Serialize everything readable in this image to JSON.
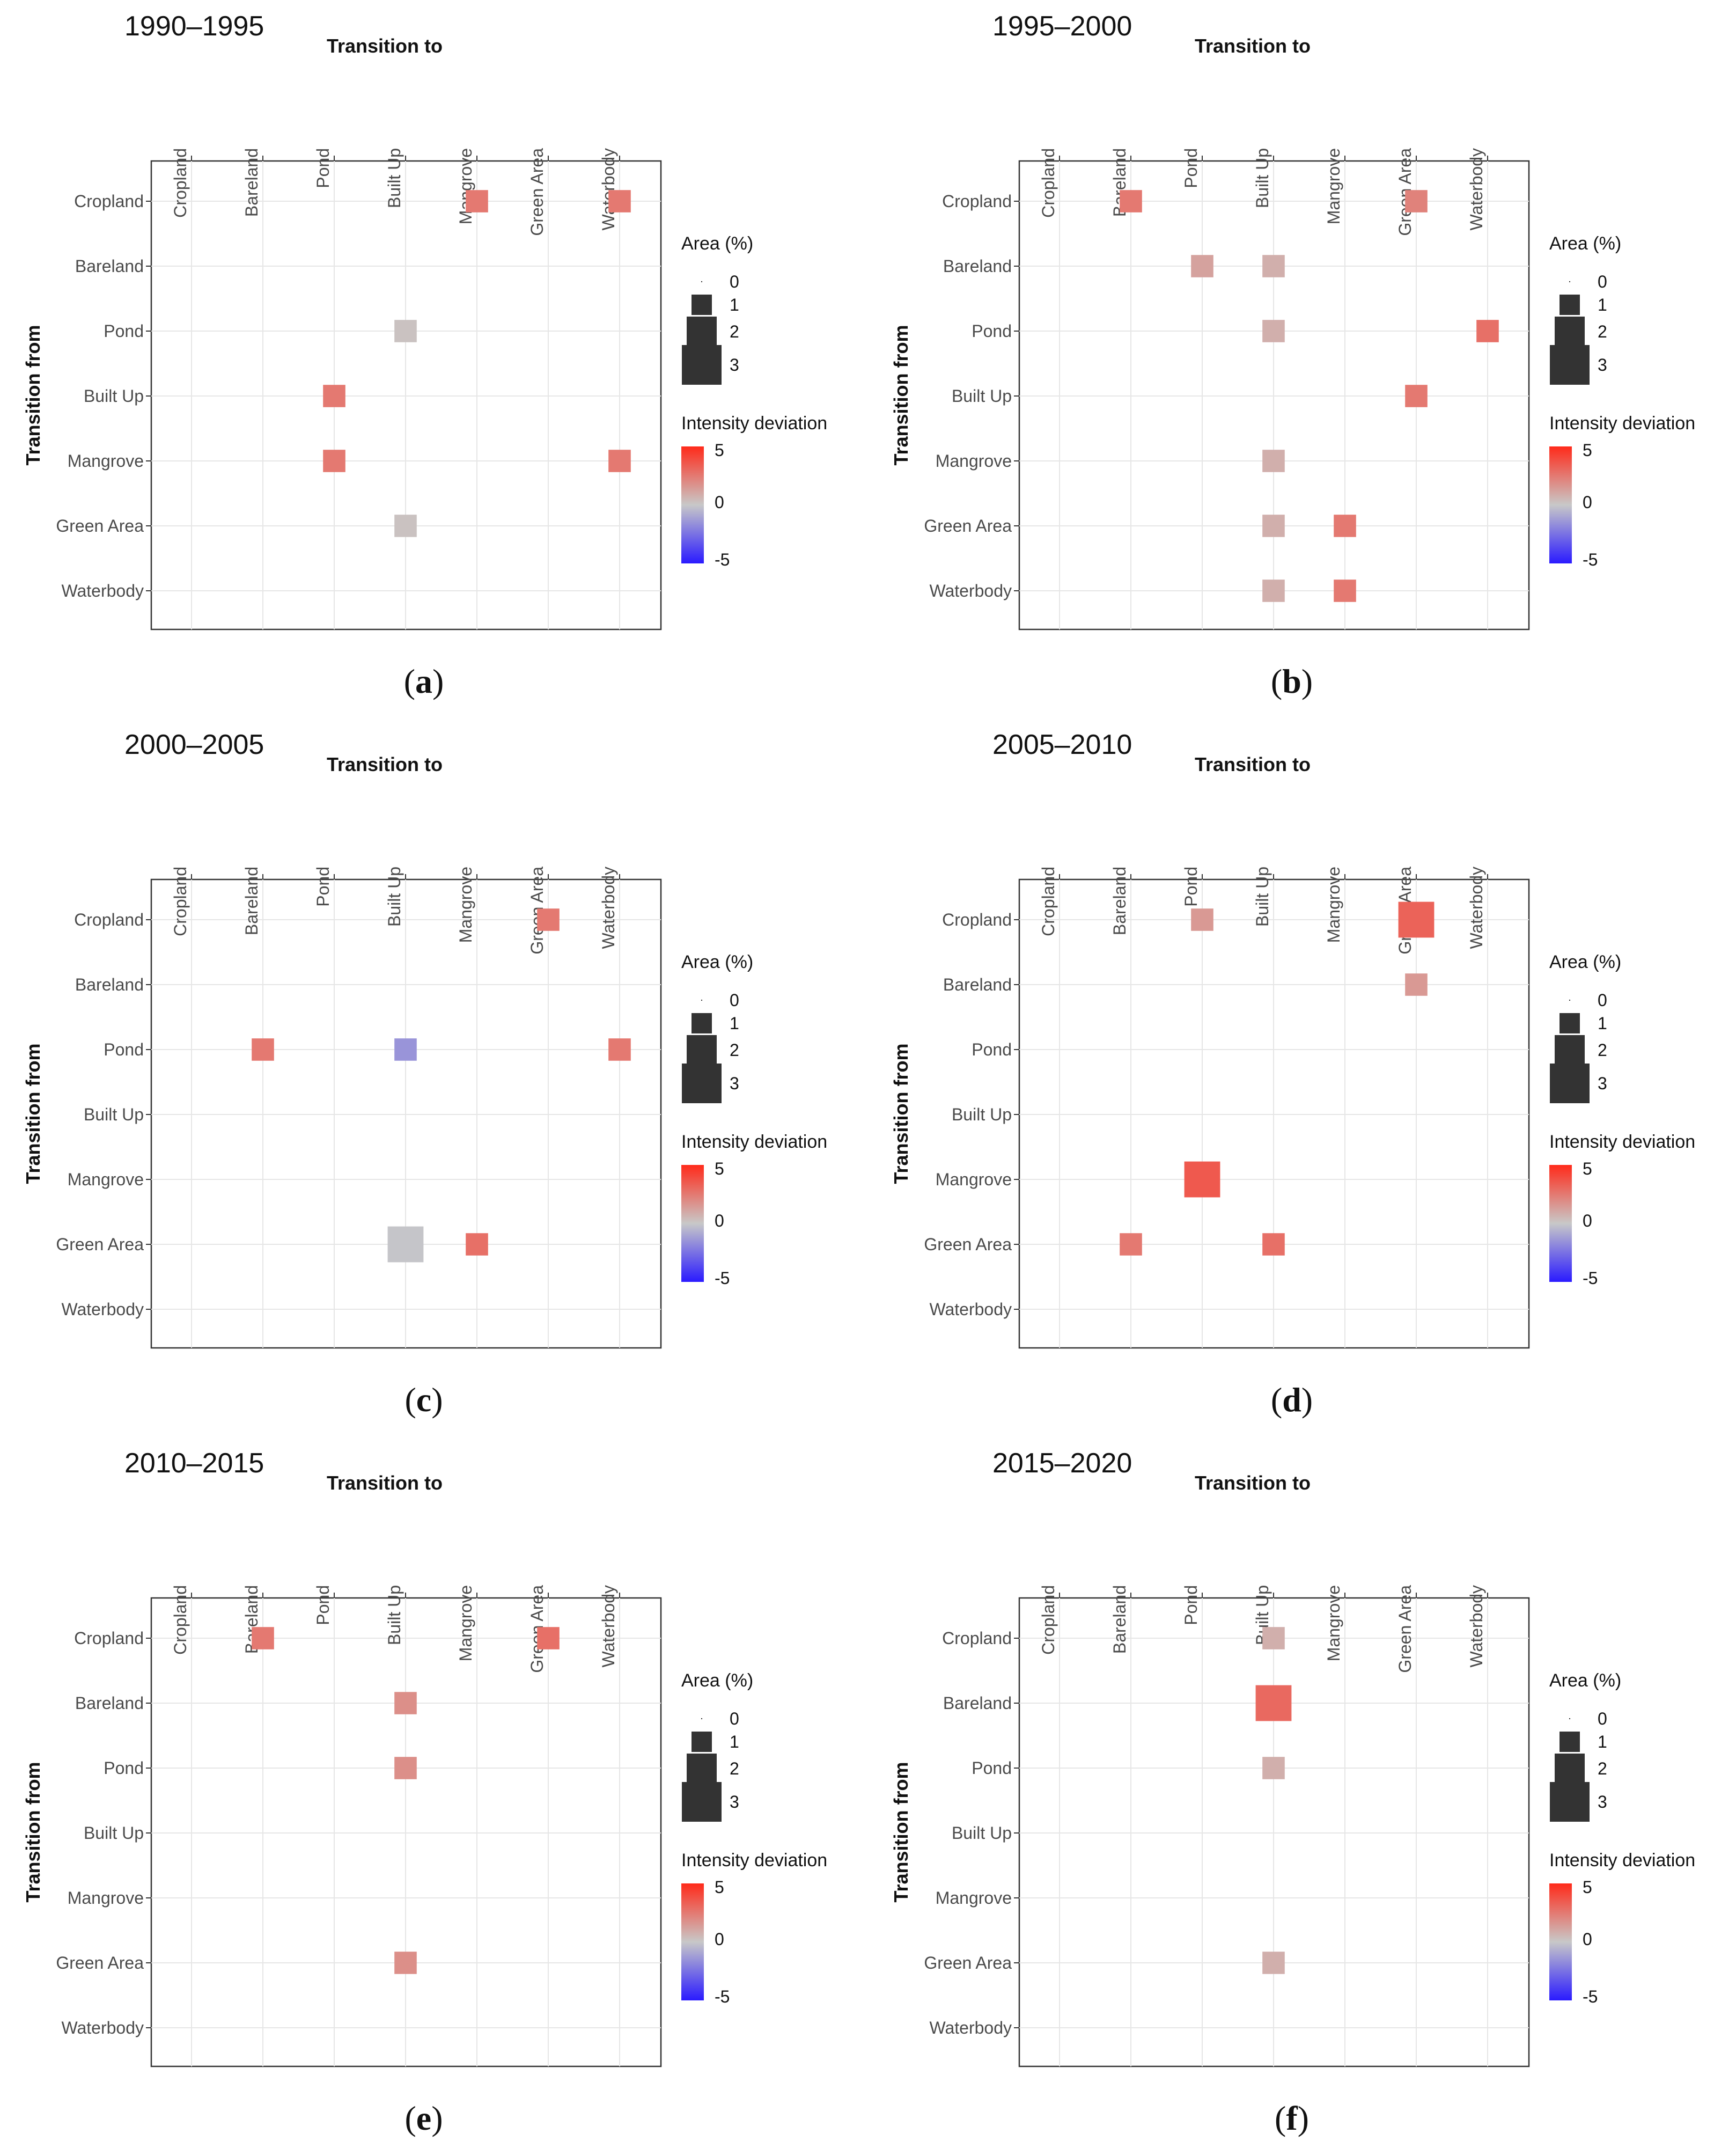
{
  "figure": {
    "axis_x_title": "Transition to",
    "axis_y_title": "Transition from",
    "legend_size_title": "Area (%)",
    "legend_size_ticks": [
      "0",
      "1",
      "2",
      "3"
    ],
    "legend_color_title": "Intensity deviation",
    "legend_color_ticks": [
      "5",
      "0",
      "-5"
    ],
    "colors": {
      "high": "#ff2a1a",
      "mid": "#c8c8c8",
      "low": "#2a1aff",
      "frame": "#333333",
      "grid": "#e6e6e6",
      "size_key": "#333333"
    }
  },
  "chart_data": [
    {
      "type": "heatmap",
      "title": "1990–1995",
      "caption_letter": "a",
      "xlabel": "Transition to",
      "ylabel": "Transition from",
      "categories": [
        "Cropland",
        "Bareland",
        "Pond",
        "Built Up",
        "Mangrove",
        "Green Area",
        "Waterbody"
      ],
      "area_range": [
        0,
        3
      ],
      "intensity_range": [
        -5,
        5
      ],
      "cells": [
        {
          "from": "Cropland",
          "to": "Mangrove",
          "area": 1.2,
          "intensity": 2.5
        },
        {
          "from": "Cropland",
          "to": "Waterbody",
          "area": 1.2,
          "intensity": 2.5
        },
        {
          "from": "Pond",
          "to": "Built Up",
          "area": 1.2,
          "intensity": 0.2
        },
        {
          "from": "Built Up",
          "to": "Pond",
          "area": 1.2,
          "intensity": 2.5
        },
        {
          "from": "Mangrove",
          "to": "Pond",
          "area": 1.2,
          "intensity": 2.5
        },
        {
          "from": "Mangrove",
          "to": "Waterbody",
          "area": 1.2,
          "intensity": 2.5
        },
        {
          "from": "Green Area",
          "to": "Built Up",
          "area": 1.2,
          "intensity": 0.2
        }
      ]
    },
    {
      "type": "heatmap",
      "title": "1995–2000",
      "caption_letter": "b",
      "xlabel": "Transition to",
      "ylabel": "Transition from",
      "categories": [
        "Cropland",
        "Bareland",
        "Pond",
        "Built Up",
        "Mangrove",
        "Green Area",
        "Waterbody"
      ],
      "area_range": [
        0,
        3
      ],
      "intensity_range": [
        -5,
        5
      ],
      "cells": [
        {
          "from": "Cropland",
          "to": "Bareland",
          "area": 1.2,
          "intensity": 2.5
        },
        {
          "from": "Cropland",
          "to": "Green Area",
          "area": 1.2,
          "intensity": 2.2
        },
        {
          "from": "Bareland",
          "to": "Pond",
          "area": 1.2,
          "intensity": 1.2
        },
        {
          "from": "Bareland",
          "to": "Built Up",
          "area": 1.2,
          "intensity": 0.8
        },
        {
          "from": "Pond",
          "to": "Built Up",
          "area": 1.2,
          "intensity": 0.8
        },
        {
          "from": "Pond",
          "to": "Waterbody",
          "area": 1.2,
          "intensity": 2.8
        },
        {
          "from": "Built Up",
          "to": "Green Area",
          "area": 1.2,
          "intensity": 2.5
        },
        {
          "from": "Mangrove",
          "to": "Built Up",
          "area": 1.2,
          "intensity": 0.8
        },
        {
          "from": "Green Area",
          "to": "Built Up",
          "area": 1.2,
          "intensity": 0.8
        },
        {
          "from": "Green Area",
          "to": "Mangrove",
          "area": 1.2,
          "intensity": 2.5
        },
        {
          "from": "Waterbody",
          "to": "Built Up",
          "area": 1.2,
          "intensity": 0.8
        },
        {
          "from": "Waterbody",
          "to": "Mangrove",
          "area": 1.2,
          "intensity": 2.5
        }
      ]
    },
    {
      "type": "heatmap",
      "title": "2000–2005",
      "caption_letter": "c",
      "xlabel": "Transition to",
      "ylabel": "Transition from",
      "categories": [
        "Cropland",
        "Bareland",
        "Pond",
        "Built Up",
        "Mangrove",
        "Green Area",
        "Waterbody"
      ],
      "area_range": [
        0,
        3
      ],
      "intensity_range": [
        -5,
        5
      ],
      "cells": [
        {
          "from": "Cropland",
          "to": "Green Area",
          "area": 1.2,
          "intensity": 2.5
        },
        {
          "from": "Pond",
          "to": "Bareland",
          "area": 1.2,
          "intensity": 2.5
        },
        {
          "from": "Pond",
          "to": "Built Up",
          "area": 1.2,
          "intensity": -1.5
        },
        {
          "from": "Pond",
          "to": "Waterbody",
          "area": 1.2,
          "intensity": 2.5
        },
        {
          "from": "Green Area",
          "to": "Built Up",
          "area": 2.6,
          "intensity": -0.1
        },
        {
          "from": "Green Area",
          "to": "Mangrove",
          "area": 1.2,
          "intensity": 2.8
        }
      ]
    },
    {
      "type": "heatmap",
      "title": "2005–2010",
      "caption_letter": "d",
      "xlabel": "Transition to",
      "ylabel": "Transition from",
      "categories": [
        "Cropland",
        "Bareland",
        "Pond",
        "Built Up",
        "Mangrove",
        "Green Area",
        "Waterbody"
      ],
      "area_range": [
        0,
        3
      ],
      "intensity_range": [
        -5,
        5
      ],
      "cells": [
        {
          "from": "Cropland",
          "to": "Pond",
          "area": 1.2,
          "intensity": 1.5
        },
        {
          "from": "Cropland",
          "to": "Green Area",
          "area": 2.6,
          "intensity": 3.2
        },
        {
          "from": "Bareland",
          "to": "Green Area",
          "area": 1.2,
          "intensity": 1.5
        },
        {
          "from": "Mangrove",
          "to": "Pond",
          "area": 2.6,
          "intensity": 3.5
        },
        {
          "from": "Green Area",
          "to": "Bareland",
          "area": 1.2,
          "intensity": 2.5
        },
        {
          "from": "Green Area",
          "to": "Built Up",
          "area": 1.2,
          "intensity": 2.8
        }
      ]
    },
    {
      "type": "heatmap",
      "title": "2010–2015",
      "caption_letter": "e",
      "xlabel": "Transition to",
      "ylabel": "Transition from",
      "categories": [
        "Cropland",
        "Bareland",
        "Pond",
        "Built Up",
        "Mangrove",
        "Green Area",
        "Waterbody"
      ],
      "area_range": [
        0,
        3
      ],
      "intensity_range": [
        -5,
        5
      ],
      "cells": [
        {
          "from": "Cropland",
          "to": "Bareland",
          "area": 1.2,
          "intensity": 2.5
        },
        {
          "from": "Cropland",
          "to": "Green Area",
          "area": 1.2,
          "intensity": 2.8
        },
        {
          "from": "Bareland",
          "to": "Built Up",
          "area": 1.2,
          "intensity": 1.8
        },
        {
          "from": "Pond",
          "to": "Built Up",
          "area": 1.2,
          "intensity": 1.8
        },
        {
          "from": "Green Area",
          "to": "Built Up",
          "area": 1.2,
          "intensity": 1.8
        }
      ]
    },
    {
      "type": "heatmap",
      "title": "2015–2020",
      "caption_letter": "f",
      "xlabel": "Transition to",
      "ylabel": "Transition from",
      "categories": [
        "Cropland",
        "Bareland",
        "Pond",
        "Built Up",
        "Mangrove",
        "Green Area",
        "Waterbody"
      ],
      "area_range": [
        0,
        3
      ],
      "intensity_range": [
        -5,
        5
      ],
      "cells": [
        {
          "from": "Cropland",
          "to": "Built Up",
          "area": 1.2,
          "intensity": 0.8
        },
        {
          "from": "Bareland",
          "to": "Built Up",
          "area": 2.6,
          "intensity": 3.0
        },
        {
          "from": "Pond",
          "to": "Built Up",
          "area": 1.2,
          "intensity": 0.8
        },
        {
          "from": "Green Area",
          "to": "Built Up",
          "area": 1.2,
          "intensity": 0.8
        }
      ]
    }
  ]
}
